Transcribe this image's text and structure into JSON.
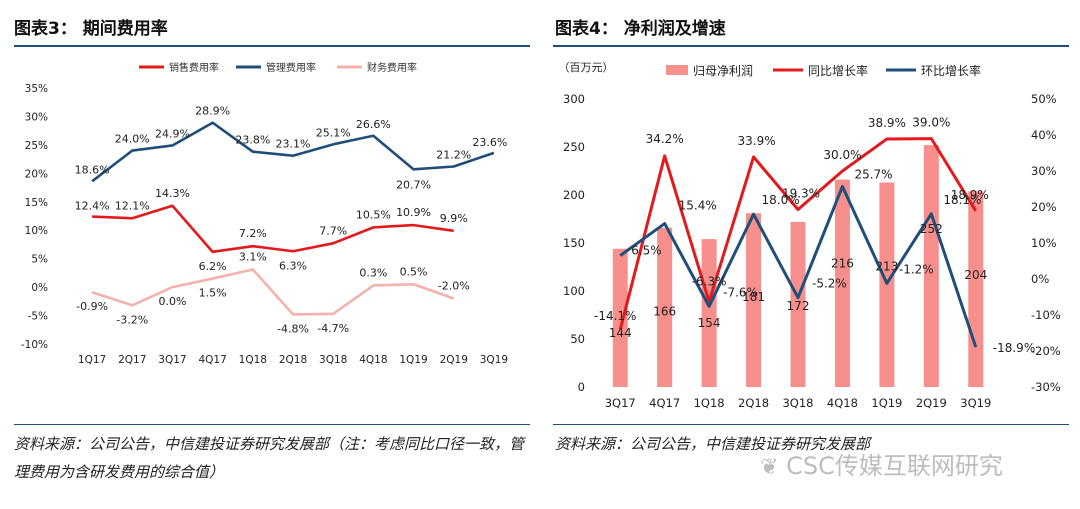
{
  "left": {
    "title": "图表3： 期间费用率",
    "source": "资料来源：公司公告，中信建投证券研究发展部（注：考虑同比口径一致，管理费用为含研发费用的综合值）",
    "chart_data": {
      "type": "line",
      "categories": [
        "1Q17",
        "2Q17",
        "3Q17",
        "4Q17",
        "1Q18",
        "2Q18",
        "3Q18",
        "4Q18",
        "1Q19",
        "2Q19",
        "3Q19"
      ],
      "ylim": [
        -10,
        35
      ],
      "yticks": [
        "-10%",
        "-5%",
        "0%",
        "5%",
        "10%",
        "15%",
        "20%",
        "25%",
        "30%",
        "35%"
      ],
      "legend_position": "top",
      "series": [
        {
          "name": "销售费用率",
          "color": "#e31a1c",
          "values": [
            12.4,
            12.1,
            14.3,
            6.2,
            7.2,
            6.3,
            7.7,
            10.5,
            10.9,
            9.9,
            null
          ],
          "labels": [
            "12.4%",
            "12.1%",
            "14.3%",
            "6.2%",
            "7.2%",
            "6.3%",
            "7.7%",
            "10.5%",
            "10.9%",
            "9.9%",
            ""
          ]
        },
        {
          "name": "管理费用率",
          "color": "#1f4e79",
          "values": [
            18.6,
            24.0,
            24.9,
            28.9,
            23.8,
            23.1,
            25.1,
            26.6,
            20.7,
            21.2,
            23.6
          ],
          "labels": [
            "18.6%",
            "24.0%",
            "24.9%",
            "28.9%",
            "23.8%",
            "23.1%",
            "25.1%",
            "26.6%",
            "20.7%",
            "21.2%",
            "23.6%"
          ]
        },
        {
          "name": "财务费用率",
          "color": "#f4b1ad",
          "values": [
            -0.9,
            -3.2,
            0.0,
            1.5,
            3.1,
            -4.8,
            -4.7,
            0.3,
            0.5,
            -2.0,
            null
          ],
          "labels": [
            "-0.9%",
            "-3.2%",
            "0.0%",
            "1.5%",
            "3.1%",
            "-4.8%",
            "-4.7%",
            "0.3%",
            "0.5%",
            "-2.0%",
            ""
          ]
        }
      ]
    }
  },
  "right": {
    "title": "图表4： 净利润及增速",
    "source": "资料来源：公司公告，中信建投证券研究发展部",
    "chart_data": {
      "type": "bar",
      "categories": [
        "3Q17",
        "4Q17",
        "1Q18",
        "2Q18",
        "3Q18",
        "4Q18",
        "1Q19",
        "2Q19",
        "3Q19"
      ],
      "unit_label": "（百万元）",
      "ylim": [
        0,
        300
      ],
      "yticks": [
        "0",
        "50",
        "100",
        "150",
        "200",
        "250",
        "300"
      ],
      "y2lim": [
        -30,
        50
      ],
      "y2ticks": [
        "-30%",
        "-20%",
        "-10%",
        "0%",
        "10%",
        "20%",
        "30%",
        "40%",
        "50%"
      ],
      "legend_position": "top",
      "bars": {
        "name": "归母净利润",
        "color": "#f78f8c",
        "values": [
          144,
          166,
          154,
          181,
          172,
          216,
          213,
          252,
          204
        ],
        "labels": [
          "144",
          "166",
          "154",
          "181",
          "172",
          "216",
          "213",
          "252",
          "204"
        ]
      },
      "series": [
        {
          "name": "同比增长率",
          "color": "#e31a1c",
          "values": [
            -14.1,
            34.2,
            -6.3,
            33.9,
            19.3,
            30.0,
            38.9,
            39.0,
            18.9
          ],
          "labels": [
            "-14.1%",
            "34.2%",
            "-6.3%",
            "33.9%",
            "19.3%",
            "30.0%",
            "38.9%",
            "39.0%",
            "18.9%"
          ]
        },
        {
          "name": "环比增长率",
          "color": "#1f4e79",
          "values": [
            6.5,
            15.4,
            -7.6,
            18.0,
            -5.2,
            25.7,
            -1.2,
            18.1,
            -18.9
          ],
          "labels": [
            "6.5%",
            "15.4%",
            "-7.6%",
            "18.0%",
            "-5.2%",
            "25.7%",
            "-1.2%",
            "18.1%",
            "-18.9%"
          ]
        }
      ]
    }
  },
  "watermark": "CSC传媒互联网研究"
}
